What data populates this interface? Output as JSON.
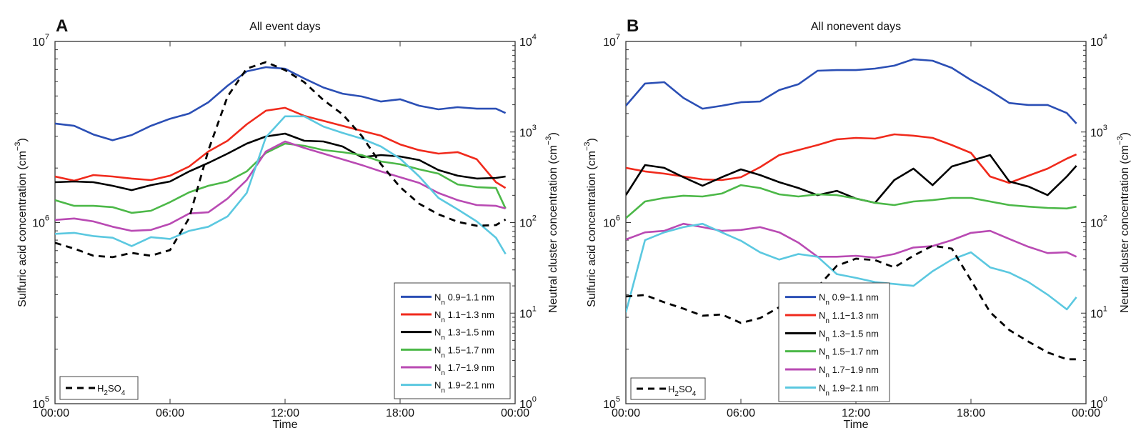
{
  "chart_data": [
    {
      "type": "line",
      "panel_letter": "A",
      "title": "All event days",
      "xlabel": "Time",
      "ylabel_left": "Sulfuric acid concentration (cm",
      "ylabel_left_exp": "−3",
      "ylabel_right": "Neutral cluster concentration (cm",
      "ylabel_right_exp": "−3",
      "x_unit": "hours",
      "xlim": [
        0,
        24
      ],
      "xticks": [
        0,
        6,
        12,
        18,
        24
      ],
      "xtick_labels": [
        "00:00",
        "06:00",
        "12:00",
        "18:00",
        "00:00"
      ],
      "ylim_left": [
        100000,
        10000000
      ],
      "ylim_right": [
        1,
        10000
      ],
      "yscale": "log",
      "yticks_left": [
        {
          "base": "10",
          "exp": "5"
        },
        {
          "base": "10",
          "exp": "6"
        },
        {
          "base": "10",
          "exp": "7"
        }
      ],
      "yticks_right": [
        {
          "base": "10",
          "exp": "0"
        },
        {
          "base": "10",
          "exp": "1"
        },
        {
          "base": "10",
          "exp": "2"
        },
        {
          "base": "10",
          "exp": "3"
        },
        {
          "base": "10",
          "exp": "4"
        }
      ],
      "x": [
        0,
        1,
        2,
        3,
        4,
        5,
        6,
        7,
        8,
        9,
        10,
        11,
        12,
        13,
        14,
        15,
        16,
        17,
        18,
        19,
        20,
        21,
        22,
        23,
        23.5
      ],
      "series": [
        {
          "name": "Nn 0.9−1.1 nm",
          "label_main": "N",
          "label_sub": "n",
          "label_rest": " 0.9−1.1 nm",
          "axis": "right",
          "color": "#2b4fb5",
          "dashed": false,
          "values": [
            1240,
            1170,
            940,
            810,
            925,
            1170,
            1400,
            1600,
            2130,
            3240,
            4670,
            5200,
            5000,
            3900,
            3100,
            2650,
            2470,
            2170,
            2300,
            1950,
            1780,
            1880,
            1810,
            1810,
            1620
          ]
        },
        {
          "name": "Nn 1.1−1.3 nm",
          "label_main": "N",
          "label_sub": "n",
          "label_rest": " 1.1−1.3 nm",
          "axis": "right",
          "color": "#f02a1c",
          "dashed": false,
          "values": [
            323,
            290,
            335,
            323,
            306,
            295,
            329,
            416,
            610,
            800,
            1215,
            1720,
            1850,
            1510,
            1330,
            1170,
            1030,
            910,
            730,
            630,
            577,
            600,
            500,
            279,
            241
          ]
        },
        {
          "name": "Nn 1.3−1.5 nm",
          "label_main": "N",
          "label_sub": "n",
          "label_rest": " 1.3−1.5 nm",
          "axis": "right",
          "color": "#000000",
          "dashed": false,
          "values": [
            279,
            284,
            279,
            255,
            228,
            259,
            284,
            367,
            456,
            577,
            745,
            893,
            960,
            800,
            786,
            692,
            527,
            557,
            537,
            490,
            380,
            329,
            306,
            311,
            323
          ]
        },
        {
          "name": "Nn 1.5−1.7 nm",
          "label_main": "N",
          "label_sub": "n",
          "label_rest": " 1.5−1.7 nm",
          "axis": "right",
          "color": "#4cb848",
          "dashed": false,
          "values": [
            177,
            153,
            153,
            148,
            128,
            135,
            168,
            216,
            255,
            284,
            367,
            588,
            745,
            705,
            632,
            599,
            557,
            473,
            440,
            387,
            347,
            264,
            246,
            241,
            143
          ]
        },
        {
          "name": "Nn 1.7−1.9 nm",
          "label_main": "N",
          "label_sub": "n",
          "label_rest": " 1.7−1.9 nm",
          "axis": "right",
          "color": "#b94ab3",
          "dashed": false,
          "values": [
            107,
            111,
            103,
            90,
            81,
            83,
            97,
            126,
            130,
            184,
            295,
            610,
            786,
            667,
            577,
            499,
            432,
            367,
            317,
            274,
            212,
            177,
            156,
            153,
            143
          ]
        },
        {
          "name": "Nn 1.9−2.1 nm",
          "label_main": "N",
          "label_sub": "n",
          "label_rest": " 1.9−2.1 nm",
          "axis": "right",
          "color": "#5bc8e0",
          "dashed": false,
          "values": [
            75,
            77,
            71,
            68,
            55,
            69,
            66,
            81,
            90,
            117,
            212,
            877,
            1490,
            1490,
            1150,
            977,
            845,
            692,
            508,
            323,
            187,
            140,
            103,
            68,
            45
          ]
        },
        {
          "name": "H2SO4",
          "label_main": "H",
          "label_sub": "2",
          "label_rest": "SO",
          "label_sub2": "4",
          "axis": "left",
          "color": "#000000",
          "dashed": true,
          "values": [
            773000,
            718000,
            656000,
            644000,
            680000,
            656000,
            705000,
            1060000,
            2510000,
            4970000,
            7080000,
            7690000,
            6950000,
            5960000,
            4750000,
            3960000,
            3010000,
            2100000,
            1570000,
            1270000,
            1110000,
            1010000,
            960000,
            969000,
            1040000
          ]
        }
      ],
      "legend_nn_position": "lower-right",
      "legend_h2so4_position": "lower-left"
    },
    {
      "type": "line",
      "panel_letter": "B",
      "title": "All nonevent days",
      "xlabel": "Time",
      "ylabel_left": "Sulfuric acid concentration (cm",
      "ylabel_left_exp": "−3",
      "ylabel_right": "Neutral cluster concentration (cm",
      "ylabel_right_exp": "−3",
      "x_unit": "hours",
      "xlim": [
        0,
        24
      ],
      "xticks": [
        0,
        6,
        12,
        18,
        24
      ],
      "xtick_labels": [
        "00:00",
        "06:00",
        "12:00",
        "18:00",
        "00:00"
      ],
      "ylim_left": [
        100000,
        10000000
      ],
      "ylim_right": [
        1,
        10000
      ],
      "yscale": "log",
      "yticks_left": [
        {
          "base": "10",
          "exp": "5"
        },
        {
          "base": "10",
          "exp": "6"
        },
        {
          "base": "10",
          "exp": "7"
        }
      ],
      "yticks_right": [
        {
          "base": "10",
          "exp": "0"
        },
        {
          "base": "10",
          "exp": "1"
        },
        {
          "base": "10",
          "exp": "2"
        },
        {
          "base": "10",
          "exp": "3"
        },
        {
          "base": "10",
          "exp": "4"
        }
      ],
      "x": [
        0,
        1,
        2,
        3,
        4,
        5,
        6,
        7,
        8,
        9,
        10,
        11,
        12,
        13,
        14,
        15,
        16,
        17,
        18,
        19,
        20,
        21,
        22,
        23,
        23.5
      ],
      "series": [
        {
          "name": "Nn 0.9−1.1 nm",
          "label_main": "N",
          "label_sub": "n",
          "label_rest": " 0.9−1.1 nm",
          "axis": "right",
          "color": "#2b4fb5",
          "dashed": false,
          "values": [
            1950,
            3430,
            3550,
            2380,
            1810,
            1950,
            2130,
            2170,
            2910,
            3370,
            4750,
            4830,
            4830,
            5010,
            5400,
            6360,
            6120,
            5110,
            3750,
            2860,
            2090,
            1990,
            1990,
            1620,
            1240
          ]
        },
        {
          "name": "Nn 1.1−1.3 nm",
          "label_main": "N",
          "label_sub": "n",
          "label_rest": " 1.1−1.3 nm",
          "axis": "right",
          "color": "#f02a1c",
          "dashed": false,
          "values": [
            402,
            367,
            347,
            323,
            300,
            295,
            317,
            409,
            557,
            632,
            718,
            830,
            861,
            845,
            942,
            910,
            861,
            718,
            588,
            323,
            274,
            329,
            394,
            508,
            566
          ]
        },
        {
          "name": "Nn 1.3−1.5 nm",
          "label_main": "N",
          "label_sub": "n",
          "label_rest": " 1.3−1.5 nm",
          "axis": "right",
          "color": "#000000",
          "dashed": false,
          "values": [
            201,
            432,
            402,
            317,
            255,
            317,
            387,
            335,
            279,
            241,
            201,
            224,
            184,
            165,
            295,
            394,
            259,
            416,
            481,
            557,
            284,
            250,
            201,
            323,
            424
          ]
        },
        {
          "name": "Nn 1.5−1.7 nm",
          "label_main": "N",
          "label_sub": "n",
          "label_rest": " 1.5−1.7 nm",
          "axis": "right",
          "color": "#4cb848",
          "dashed": false,
          "values": [
            112,
            171,
            187,
            198,
            194,
            209,
            259,
            241,
            205,
            194,
            205,
            201,
            184,
            165,
            156,
            171,
            177,
            187,
            187,
            171,
            156,
            150,
            145,
            143,
            150
          ]
        },
        {
          "name": "Nn 1.7−1.9 nm",
          "label_main": "N",
          "label_sub": "n",
          "label_rest": " 1.7−1.9 nm",
          "axis": "right",
          "color": "#b94ab3",
          "dashed": false,
          "values": [
            65,
            78,
            81,
            97,
            89,
            81,
            83,
            89,
            78,
            60,
            42,
            42,
            43,
            41,
            45,
            53,
            55,
            64,
            77,
            81,
            66,
            54,
            46,
            47,
            42
          ]
        },
        {
          "name": "Nn 1.9−2.1 nm",
          "label_main": "N",
          "label_sub": "n",
          "label_rest": " 1.9−2.1 nm",
          "axis": "right",
          "color": "#5bc8e0",
          "dashed": false,
          "values": [
            10.2,
            64,
            78,
            89,
            97,
            78,
            63,
            47,
            39,
            45,
            42,
            27,
            24.5,
            22,
            21,
            20,
            29,
            39,
            47,
            32,
            28,
            22,
            16,
            11,
            15
          ]
        },
        {
          "name": "H2SO4",
          "label_main": "H",
          "label_sub": "2",
          "label_rest": "SO",
          "label_sub2": "4",
          "axis": "left",
          "color": "#000000",
          "dashed": true,
          "values": [
            391000,
            398000,
            363000,
            335000,
            306000,
            311000,
            279000,
            297000,
            341000,
            380000,
            440000,
            577000,
            632000,
            621000,
            566000,
            656000,
            745000,
            718000,
            481000,
            320000,
            255000,
            220000,
            192000,
            176000,
            176000
          ]
        }
      ],
      "legend_nn_position": "lower-center",
      "legend_h2so4_position": "lower-left"
    }
  ]
}
